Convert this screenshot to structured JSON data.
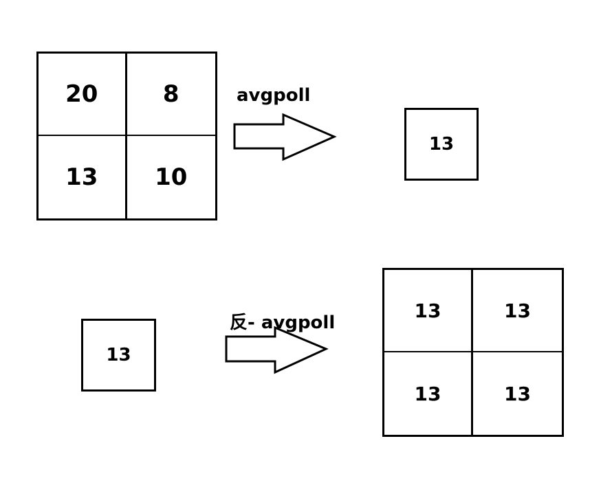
{
  "forward": {
    "label": "avgpoll",
    "input_grid": [
      "20",
      "8",
      "13",
      "10"
    ],
    "output_value": "13"
  },
  "backward": {
    "label": "反- avgpoll",
    "input_value": "13",
    "output_grid": [
      "13",
      "13",
      "13",
      "13"
    ]
  }
}
